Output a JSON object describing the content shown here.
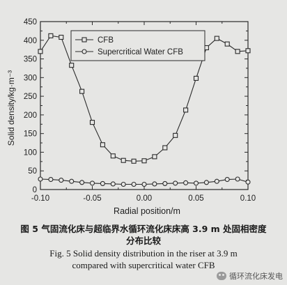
{
  "chart_data": {
    "type": "line",
    "xlabel": "Radial position/m",
    "ylabel": "Solid density/kg·m⁻³",
    "xlim": [
      -0.1,
      0.1
    ],
    "ylim": [
      0,
      450
    ],
    "xticks": [
      "-0.10",
      "-0.05",
      "0.00",
      "0.05",
      "0.10"
    ],
    "xtick_values": [
      -0.1,
      -0.05,
      0.0,
      0.05,
      0.1
    ],
    "yticks": [
      "0",
      "50",
      "100",
      "150",
      "200",
      "250",
      "300",
      "350",
      "400",
      "450"
    ],
    "ytick_values": [
      0,
      50,
      100,
      150,
      200,
      250,
      300,
      350,
      400,
      450
    ],
    "legend_position": "top-right",
    "grid": false,
    "series": [
      {
        "name": "CFB",
        "marker": "square",
        "x": [
          -0.1,
          -0.09,
          -0.08,
          -0.07,
          -0.06,
          -0.05,
          -0.04,
          -0.03,
          -0.02,
          -0.01,
          0.0,
          0.01,
          0.02,
          0.03,
          0.04,
          0.05,
          0.06,
          0.07,
          0.08,
          0.09,
          0.1
        ],
        "y": [
          370,
          412,
          408,
          333,
          263,
          180,
          120,
          90,
          78,
          76,
          77,
          88,
          112,
          145,
          213,
          298,
          380,
          405,
          390,
          370,
          372
        ]
      },
      {
        "name": "Supercritical Water CFB",
        "marker": "circle",
        "x": [
          -0.1,
          -0.09,
          -0.08,
          -0.07,
          -0.06,
          -0.05,
          -0.04,
          -0.03,
          -0.02,
          -0.01,
          0.0,
          0.01,
          0.02,
          0.03,
          0.04,
          0.05,
          0.06,
          0.07,
          0.08,
          0.09,
          0.1
        ],
        "y": [
          28,
          27,
          25,
          22,
          19,
          17,
          16,
          15,
          14,
          14,
          14,
          15,
          16,
          17,
          18,
          17,
          19,
          22,
          27,
          28,
          20
        ]
      }
    ]
  },
  "caption": {
    "cn_line1": "图 5  气固流化床与超临界水循环流化床床高 3.9 m 处固相密度",
    "cn_line2": "分布比较",
    "en_line1": "Fig. 5  Solid density distribution in the riser at 3.9 m",
    "en_line2": "compared with supercritical water CFB"
  },
  "watermark": {
    "text": "循环流化床发电",
    "icon": "wechat-icon"
  }
}
